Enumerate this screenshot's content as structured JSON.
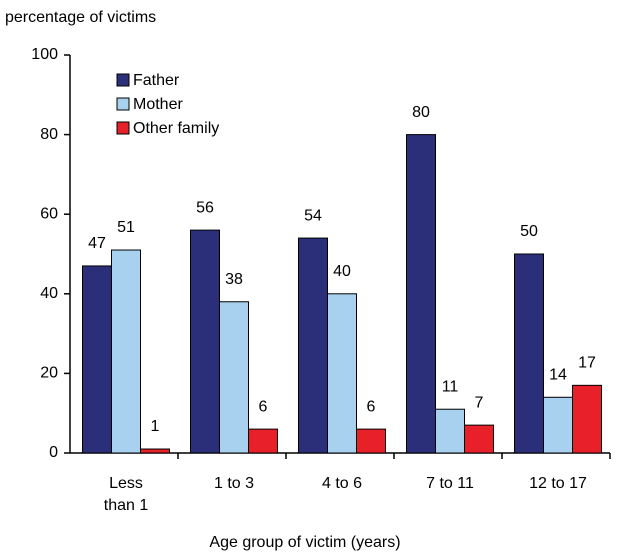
{
  "chart_data": {
    "type": "bar",
    "y_label": "percentage of victims",
    "x_label": "Age group of victim (years)",
    "categories": [
      "Less\nthan 1",
      "1 to 3",
      "4 to 6",
      "7 to 11",
      "12 to 17"
    ],
    "series": [
      {
        "name": "Father",
        "color": "#2b2e78",
        "values": [
          47,
          56,
          54,
          80,
          50
        ]
      },
      {
        "name": "Mother",
        "color": "#a8d0ef",
        "values": [
          51,
          38,
          40,
          11,
          14
        ]
      },
      {
        "name": "Other family",
        "color": "#e8202a",
        "values": [
          1,
          6,
          6,
          7,
          17
        ]
      }
    ],
    "ylim": [
      0,
      100
    ],
    "yticks": [
      0,
      20,
      40,
      60,
      80,
      100
    ],
    "grid": false,
    "legend": "upper left"
  }
}
